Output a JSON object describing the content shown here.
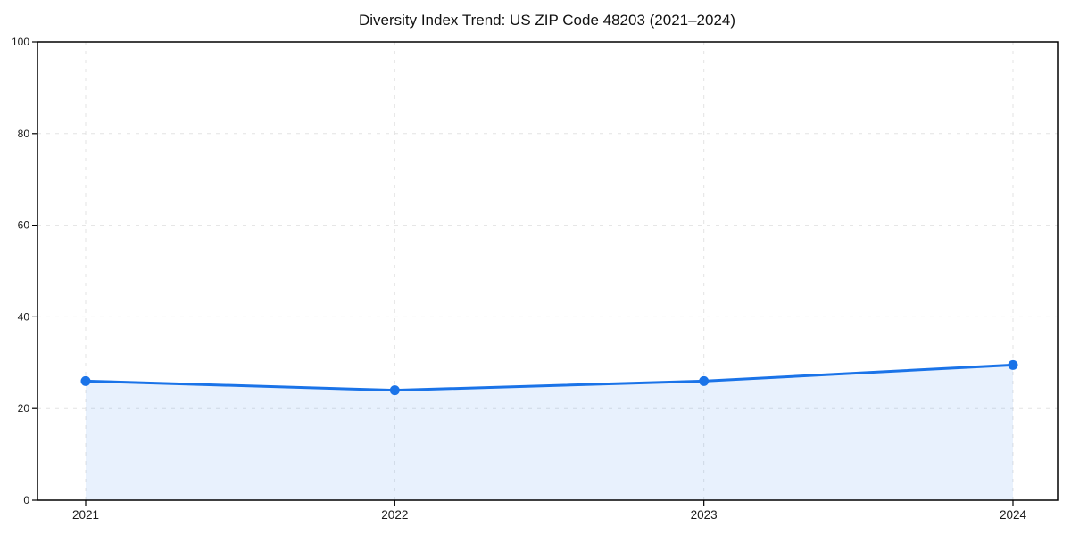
{
  "chart_data": {
    "type": "area",
    "title": "Diversity Index Trend: US ZIP Code 48203 (2021–2024)",
    "categories": [
      "2021",
      "2022",
      "2023",
      "2024"
    ],
    "series": [
      {
        "name": "Diversity Index",
        "values": [
          26,
          24,
          26,
          29.5
        ]
      }
    ],
    "xlabel": "",
    "ylabel": "",
    "ylim": [
      0,
      100
    ],
    "yticks": [
      0,
      20,
      40,
      60,
      80,
      100
    ],
    "grid": "dashed-both-axes",
    "legend": "none",
    "colors": {
      "line": "#1a73e8",
      "marker": "#1a73e8",
      "fill": "rgba(26,115,232,0.10)",
      "grid": "#e3e3e3",
      "axis": "#000000",
      "text": "#1a1a1a"
    }
  }
}
